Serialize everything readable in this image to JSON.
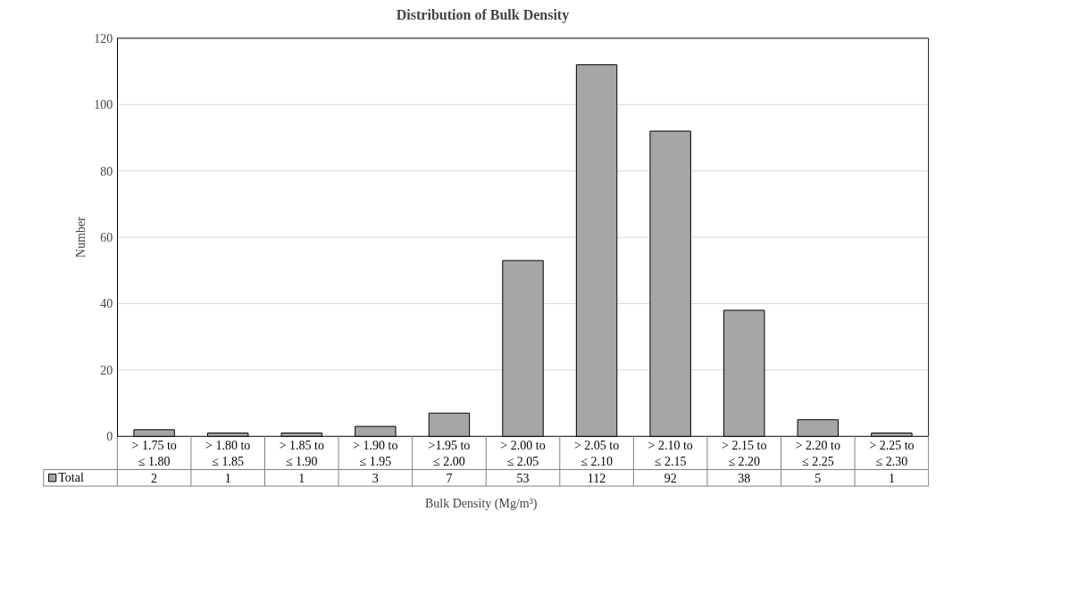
{
  "chart_data": {
    "type": "bar",
    "title": "Distribution of Bulk Density",
    "xlabel": "Bulk Density  (Mg/m³)",
    "ylabel": "Number",
    "categories": [
      "> 1.75 to ≤ 1.80",
      "> 1.80 to ≤ 1.85",
      "> 1.85 to ≤ 1.90",
      "> 1.90 to ≤ 1.95",
      ">1.95 to ≤ 2.00",
      "> 2.00 to ≤ 2.05",
      "> 2.05 to ≤ 2.10",
      "> 2.10 to ≤ 2.15",
      "> 2.15 to ≤ 2.20",
      "> 2.20 to ≤ 2.25",
      "> 2.25 to ≤ 2.30"
    ],
    "series": [
      {
        "name": "Total",
        "color": "#a6a6a6",
        "values": [
          2,
          1,
          1,
          3,
          7,
          53,
          112,
          92,
          38,
          5,
          1
        ]
      }
    ],
    "ylim": [
      0,
      120
    ],
    "yticks": [
      0,
      20,
      40,
      60,
      80,
      100,
      120
    ],
    "grid": "y",
    "legend": "bottom",
    "data_labels": true
  }
}
